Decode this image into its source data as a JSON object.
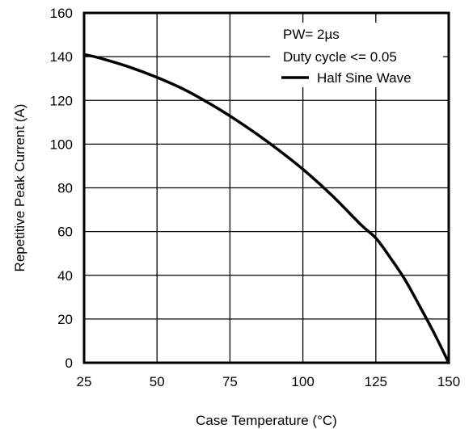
{
  "chart_data": {
    "type": "line",
    "title": "",
    "xlabel": "Case Temperature (°C)",
    "ylabel": "Repetitive Peak Current (A)",
    "xlim": [
      25,
      150
    ],
    "ylim": [
      0,
      160
    ],
    "x_ticks": [
      25,
      50,
      75,
      100,
      125,
      150
    ],
    "y_ticks": [
      0,
      20,
      40,
      60,
      80,
      100,
      120,
      140,
      160
    ],
    "grid": true,
    "annotations": [
      "PW= 2µs",
      "Duty cycle <= 0.05"
    ],
    "legend_position": "top-right",
    "series": [
      {
        "name": "Half Sine Wave",
        "color": "#000000",
        "x": [
          25,
          30,
          40,
          50,
          60,
          70,
          80,
          90,
          100,
          110,
          120,
          125,
          130,
          135,
          140,
          145,
          150
        ],
        "y": [
          141,
          139.5,
          135.5,
          130.5,
          124.5,
          117,
          108.5,
          99,
          88.5,
          76.5,
          63,
          57,
          48,
          38,
          26,
          13.5,
          0
        ]
      }
    ]
  }
}
